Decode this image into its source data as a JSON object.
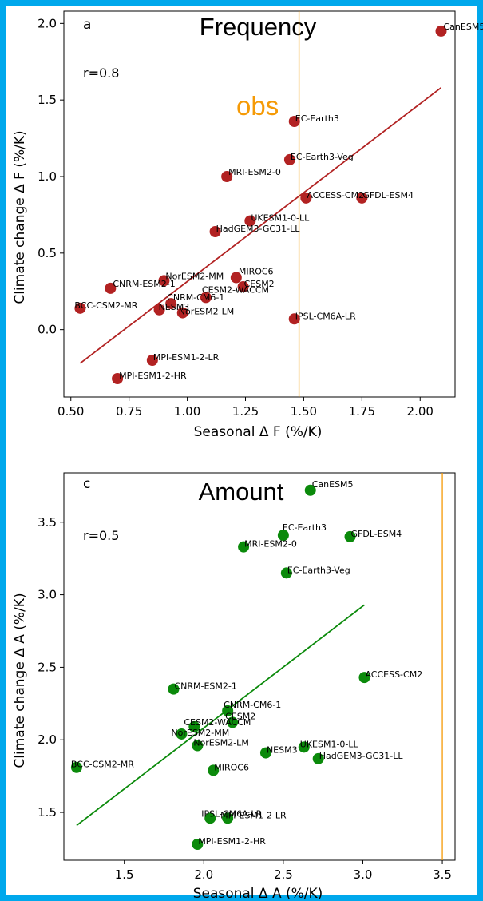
{
  "colors": {
    "frame": "#00a8ec",
    "obs": "#f59a06"
  },
  "chart_data": [
    {
      "type": "scatter",
      "panel": "a",
      "title": "Frequency",
      "annotation": "r=0.8",
      "obs_label": "obs",
      "obs_x": 1.48,
      "xlabel": "Seasonal Δ F (%/K)",
      "ylabel": "Climate change Δ F (%/K)",
      "xlim": [
        0.47,
        2.15
      ],
      "ylim": [
        -0.44,
        2.08
      ],
      "xticks": [
        0.5,
        0.75,
        1.0,
        1.25,
        1.5,
        1.75,
        2.0
      ],
      "xtick_labels": [
        "0.50",
        "0.75",
        "1.00",
        "1.25",
        "1.50",
        "1.75",
        "2.00"
      ],
      "yticks": [
        0.0,
        0.5,
        1.0,
        1.5,
        2.0
      ],
      "ytick_labels": [
        "0.0",
        "0.5",
        "1.0",
        "1.5",
        "2.0"
      ],
      "point_color": "#b22222",
      "fit_color": "#b22222",
      "fit_line": [
        [
          0.54,
          -0.22
        ],
        [
          2.09,
          1.58
        ]
      ],
      "points": [
        {
          "name": "CanESM5",
          "x": 2.09,
          "y": 1.95
        },
        {
          "name": "EC-Earth3",
          "x": 1.46,
          "y": 1.36
        },
        {
          "name": "EC-Earth3-Veg",
          "x": 1.44,
          "y": 1.11
        },
        {
          "name": "MRI-ESM2-0",
          "x": 1.17,
          "y": 1.0
        },
        {
          "name": "ACCESS-CM2",
          "x": 1.51,
          "y": 0.86
        },
        {
          "name": "GFDL-ESM4",
          "x": 1.75,
          "y": 0.86
        },
        {
          "name": "UKESM1-0-LL",
          "x": 1.27,
          "y": 0.71
        },
        {
          "name": "HadGEM3-GC31-LL",
          "x": 1.12,
          "y": 0.64
        },
        {
          "name": "NorESM2-MM",
          "x": 0.9,
          "y": 0.32
        },
        {
          "name": "CNRM-ESM2-1",
          "x": 0.67,
          "y": 0.27
        },
        {
          "name": "MIROC6",
          "x": 1.21,
          "y": 0.34
        },
        {
          "name": "CESM2",
          "x": 1.24,
          "y": 0.28
        },
        {
          "name": "CESM2-WACCM",
          "x": 1.08,
          "y": 0.21
        },
        {
          "name": "CNRM-CM6-1",
          "x": 0.93,
          "y": 0.17
        },
        {
          "name": "NESM3",
          "x": 0.88,
          "y": 0.13
        },
        {
          "name": "NorESM2-LM",
          "x": 0.98,
          "y": 0.11
        },
        {
          "name": "BCC-CSM2-MR",
          "x": 0.54,
          "y": 0.14
        },
        {
          "name": "IPSL-CM6A-LR",
          "x": 1.46,
          "y": 0.07
        },
        {
          "name": "MPI-ESM1-2-LR",
          "x": 0.85,
          "y": -0.2
        },
        {
          "name": "MPI-ESM1-2-HR",
          "x": 0.7,
          "y": -0.32
        }
      ]
    },
    {
      "type": "scatter",
      "panel": "c",
      "title": "Amount",
      "annotation": "r=0.5",
      "obs_x": 3.5,
      "xlabel": "Seasonal Δ A (%/K)",
      "ylabel": "Climate change Δ A (%/K)",
      "xlim": [
        1.12,
        3.58
      ],
      "ylim": [
        1.17,
        3.84
      ],
      "xticks": [
        1.5,
        2.0,
        2.5,
        3.0,
        3.5
      ],
      "xtick_labels": [
        "1.5",
        "2.0",
        "2.5",
        "3.0",
        "3.5"
      ],
      "yticks": [
        1.5,
        2.0,
        2.5,
        3.0,
        3.5
      ],
      "ytick_labels": [
        "1.5",
        "2.0",
        "2.5",
        "3.0",
        "3.5"
      ],
      "point_color": "#0b8a0b",
      "fit_color": "#0b8a0b",
      "fit_line": [
        [
          1.2,
          1.41
        ],
        [
          3.01,
          2.93
        ]
      ],
      "points": [
        {
          "name": "CanESM5",
          "x": 2.67,
          "y": 3.72
        },
        {
          "name": "EC-Earth3",
          "x": 2.5,
          "y": 3.41
        },
        {
          "name": "GFDL-ESM4",
          "x": 2.92,
          "y": 3.4
        },
        {
          "name": "MRI-ESM2-0",
          "x": 2.25,
          "y": 3.33
        },
        {
          "name": "EC-Earth3-Veg",
          "x": 2.52,
          "y": 3.15
        },
        {
          "name": "ACCESS-CM2",
          "x": 3.01,
          "y": 2.43
        },
        {
          "name": "CNRM-ESM2-1",
          "x": 1.81,
          "y": 2.35
        },
        {
          "name": "CNRM-CM6-1",
          "x": 2.15,
          "y": 2.2
        },
        {
          "name": "CESM2",
          "x": 2.18,
          "y": 2.12
        },
        {
          "name": "CESM2-WACCM",
          "x": 1.94,
          "y": 2.09
        },
        {
          "name": "NorESM2-MM",
          "x": 1.86,
          "y": 2.04
        },
        {
          "name": "NorESM2-LM",
          "x": 1.96,
          "y": 1.96
        },
        {
          "name": "UKESM1-0-LL",
          "x": 2.63,
          "y": 1.95
        },
        {
          "name": "NESM3",
          "x": 2.39,
          "y": 1.91
        },
        {
          "name": "HadGEM3-GC31-LL",
          "x": 2.72,
          "y": 1.87
        },
        {
          "name": "BCC-CSM2-MR",
          "x": 1.2,
          "y": 1.81
        },
        {
          "name": "MIROC6",
          "x": 2.06,
          "y": 1.79
        },
        {
          "name": "IPSL-CM6A-LR",
          "x": 2.04,
          "y": 1.46
        },
        {
          "name": "MPI-ESM1-2-LR",
          "x": 2.15,
          "y": 1.46
        },
        {
          "name": "MPI-ESM1-2-HR",
          "x": 1.96,
          "y": 1.28
        }
      ]
    }
  ]
}
